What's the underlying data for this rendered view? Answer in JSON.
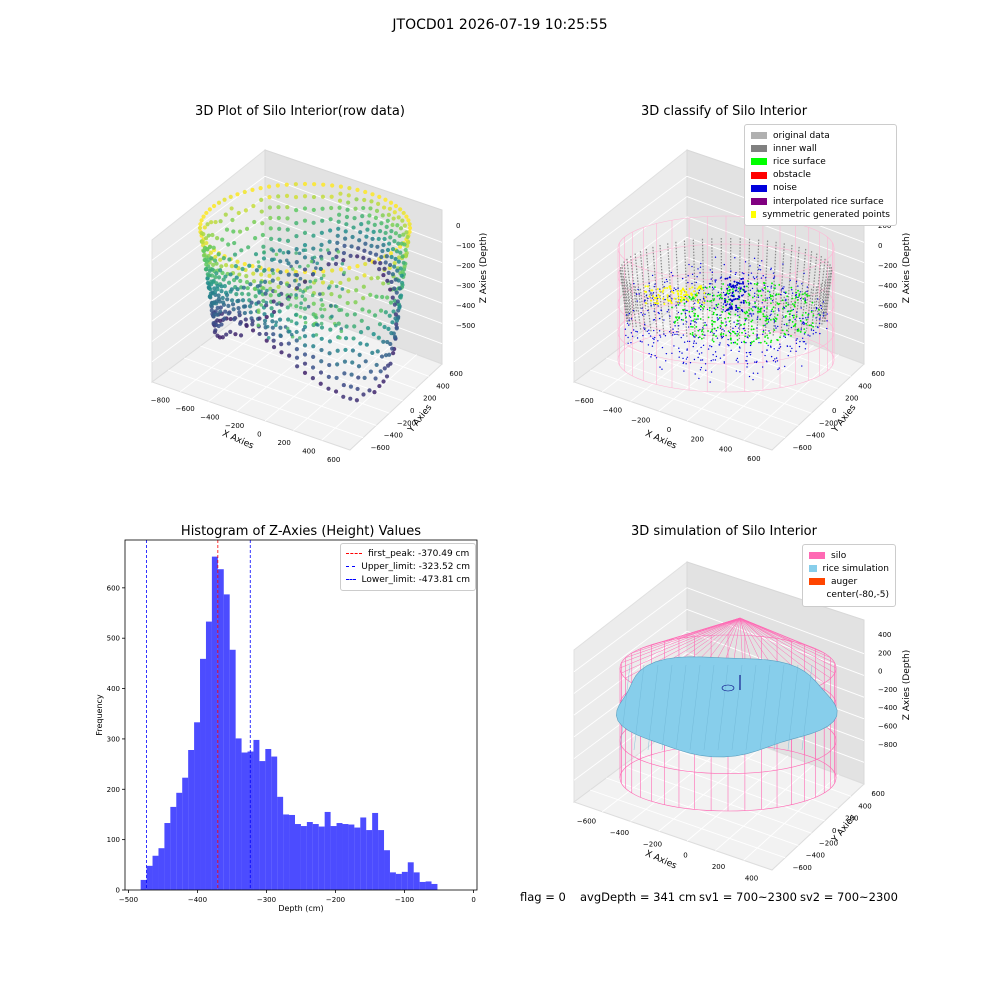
{
  "suptitle": "JTOCD01 2026-07-19 10:25:55",
  "chart_data": [
    {
      "type": "scatter",
      "title": "3D Plot of Silo Interior(row data)",
      "xlabel": "X Axies",
      "ylabel": "Y Axies",
      "zlabel": "Z Axies (Depth)",
      "x_ticks": [
        "−800",
        "−600",
        "−400",
        "−200",
        "0",
        "200",
        "400",
        "600"
      ],
      "y_ticks": [
        "−600",
        "−400",
        "−200",
        "0",
        "200",
        "400",
        "600"
      ],
      "z_ticks": [
        "0",
        "−100",
        "−200",
        "−300",
        "−400",
        "−500"
      ],
      "colormap": "viridis"
    },
    {
      "type": "scatter",
      "title": "3D classify of Silo Interior",
      "xlabel": "X Axies",
      "ylabel": "Y Axies",
      "zlabel": "Z Axies (Depth)",
      "x_ticks": [
        "−600",
        "−400",
        "−200",
        "0",
        "200",
        "400",
        "600"
      ],
      "y_ticks": [
        "−600",
        "−400",
        "−200",
        "0",
        "200",
        "400",
        "600"
      ],
      "z_ticks": [
        "200",
        "0",
        "−200",
        "−400",
        "−600",
        "−800"
      ],
      "z_ticks_partial": [
        "00"
      ],
      "legend": [
        {
          "label": "original data",
          "color": "#b0b0b0"
        },
        {
          "label": "inner wall",
          "color": "#808080"
        },
        {
          "label": "rice surface",
          "color": "#00ff00"
        },
        {
          "label": "obstacle",
          "color": "#ff0000"
        },
        {
          "label": "noise",
          "color": "#0000dd"
        },
        {
          "label": "interpolated rice surface",
          "color": "#800080"
        },
        {
          "label": "symmetric generated points",
          "color": "#ffff00"
        }
      ]
    },
    {
      "type": "bar",
      "title": "Histogram of Z-Axies (Height) Values",
      "xlabel": "Depth (cm)",
      "ylabel": "Frequency",
      "xlim": [
        -505,
        5
      ],
      "ylim": [
        0,
        695
      ],
      "x_ticks": [
        -500,
        -400,
        -300,
        -200,
        -100,
        0
      ],
      "x_tick_labels": [
        "−500",
        "−400",
        "−300",
        "−200",
        "−100",
        "0"
      ],
      "y_ticks": [
        0,
        100,
        200,
        300,
        400,
        500,
        600
      ],
      "bin_width": 8.6,
      "bin_start": -482.3,
      "values": [
        20,
        48,
        68,
        83,
        133,
        165,
        193,
        223,
        278,
        333,
        459,
        533,
        662,
        637,
        587,
        477,
        301,
        273,
        275,
        298,
        256,
        280,
        265,
        185,
        150,
        149,
        131,
        127,
        135,
        131,
        126,
        155,
        127,
        133,
        131,
        130,
        124,
        144,
        119,
        153,
        119,
        79,
        35,
        32,
        36,
        55,
        35,
        16,
        17,
        12
      ],
      "bar_color": "#0000ff",
      "vlines": [
        {
          "label": "first_peak: -370.49 cm",
          "x": -370.49,
          "color": "#ff0000"
        },
        {
          "label": "Upper_limit: -323.52 cm",
          "x": -323.52,
          "color": "#0000ff"
        },
        {
          "label": "Lower_limit: -473.81 cm",
          "x": -473.81,
          "color": "#0000ff"
        }
      ]
    },
    {
      "type": "area",
      "title": "3D simulation of Silo Interior",
      "xlabel": "X Axies",
      "ylabel": "Y Axies",
      "zlabel": "Z Axies (Depth)",
      "x_ticks": [
        "−600",
        "−400",
        "−200",
        "0",
        "200",
        "400"
      ],
      "y_ticks": [
        "−600",
        "−400",
        "−200",
        "0",
        "200",
        "400",
        "600"
      ],
      "z_ticks": [
        "400",
        "200",
        "0",
        "−200",
        "−400",
        "−600",
        "−800"
      ],
      "legend": [
        {
          "label": "silo",
          "color": "#ff69b4"
        },
        {
          "label": "rice simulation",
          "color": "#87ceeb"
        },
        {
          "label": "auger",
          "color": "#ff4500"
        },
        {
          "label": "center(-80,-5)",
          "color": "#ffffff"
        }
      ]
    }
  ],
  "footer": {
    "flag": "flag = 0",
    "avg": "avgDepth = 341 cm",
    "sv1": "sv1 = 700~2300",
    "sv2": "sv2 = 700~2300"
  }
}
